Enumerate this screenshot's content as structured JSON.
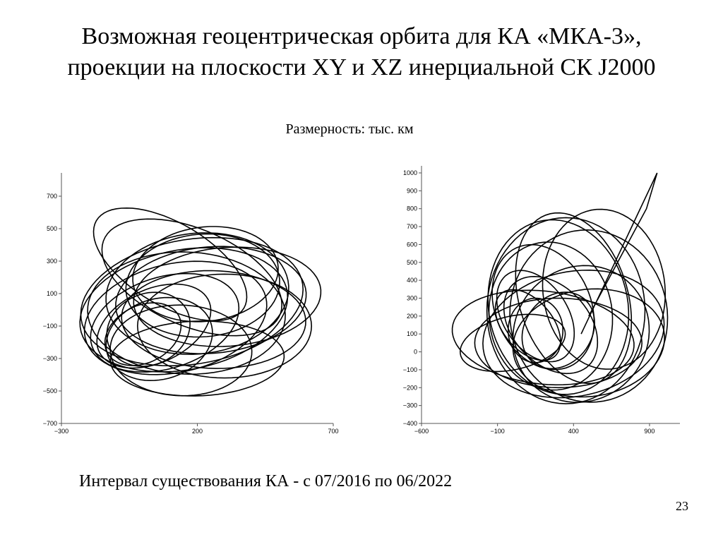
{
  "slide": {
    "title_line1": "Возможная геоцентрическая орбита для КА «МКА-3»,",
    "title_line2": "проекции на плоскости XY и XZ инерциальной СК J2000",
    "units": "Размерность: тыс. км",
    "interval": "Интервал существования КА - с 07/2016 по 06/2022",
    "page_number": "23"
  },
  "colors": {
    "line": "#000000",
    "background": "#ffffff"
  },
  "chart_data": [
    {
      "type": "line",
      "title": "",
      "xlabel": "",
      "ylabel": "",
      "xlim": [
        -300,
        700
      ],
      "ylim": [
        -700,
        800
      ],
      "x_ticks": [
        -300,
        200,
        700
      ],
      "y_ticks": [
        700,
        500,
        300,
        100,
        -100,
        -300,
        -500,
        -700
      ],
      "x_tick_labels": [
        "−300",
        "200",
        "700"
      ],
      "y_tick_labels": [
        "700",
        "500",
        "300",
        "100",
        "−100",
        "−300",
        "−500",
        "−700"
      ],
      "grid": false,
      "series": [
        {
          "orbit_loops": [
            {
              "cx": 0,
              "cy": -150,
              "rx": 130,
              "ry": 200,
              "rot": -20
            },
            {
              "cx": 20,
              "cy": -120,
              "rx": 150,
              "ry": 230,
              "rot": -10
            },
            {
              "cx": 40,
              "cy": -100,
              "rx": 180,
              "ry": 280,
              "rot": -30
            },
            {
              "cx": 80,
              "cy": -80,
              "rx": 240,
              "ry": 330,
              "rot": -35
            },
            {
              "cx": 120,
              "cy": -50,
              "rx": 300,
              "ry": 380,
              "rot": -40
            },
            {
              "cx": 150,
              "cy": 0,
              "rx": 340,
              "ry": 420,
              "rot": -45
            },
            {
              "cx": 180,
              "cy": 50,
              "rx": 360,
              "ry": 440,
              "rot": -50
            },
            {
              "cx": 200,
              "cy": 100,
              "rx": 330,
              "ry": 380,
              "rot": -20
            },
            {
              "cx": 220,
              "cy": 150,
              "rx": 280,
              "ry": 320,
              "rot": -15
            },
            {
              "cx": 250,
              "cy": 60,
              "rx": 320,
              "ry": 360,
              "rot": -60
            },
            {
              "cx": 260,
              "cy": -60,
              "rx": 340,
              "ry": 300,
              "rot": -10
            },
            {
              "cx": 300,
              "cy": -100,
              "rx": 320,
              "ry": 320,
              "rot": -5
            },
            {
              "cx": 180,
              "cy": 200,
              "rx": 250,
              "ry": 420,
              "rot": 40
            },
            {
              "cx": 140,
              "cy": -250,
              "rx": 260,
              "ry": 280,
              "rot": 10
            },
            {
              "cx": 200,
              "cy": -300,
              "rx": 320,
              "ry": 230,
              "rot": 5
            },
            {
              "cx": 100,
              "cy": 280,
              "rx": 200,
              "ry": 400,
              "rot": 35
            },
            {
              "cx": 230,
              "cy": 220,
              "rx": 260,
              "ry": 300,
              "rot": -25
            },
            {
              "cx": 160,
              "cy": -20,
              "rx": 380,
              "ry": 360,
              "rot": -65
            },
            {
              "cx": 60,
              "cy": -180,
              "rx": 190,
              "ry": 260,
              "rot": -15
            },
            {
              "cx": 310,
              "cy": 80,
              "rx": 300,
              "ry": 350,
              "rot": -70
            }
          ]
        }
      ]
    },
    {
      "type": "line",
      "title": "",
      "xlabel": "",
      "ylabel": "",
      "xlim": [
        -600,
        1100
      ],
      "ylim": [
        -400,
        1000
      ],
      "x_ticks": [
        -600,
        -100,
        400,
        900
      ],
      "y_ticks": [
        1000,
        900,
        800,
        700,
        600,
        500,
        400,
        300,
        200,
        100,
        0,
        -100,
        -200,
        -300,
        -400
      ],
      "x_tick_labels": [
        "−600",
        "−100",
        "400",
        "900"
      ],
      "y_tick_labels": [
        "1000",
        "900",
        "800",
        "700",
        "600",
        "500",
        "400",
        "300",
        "200",
        "100",
        "0",
        "−100",
        "−200",
        "−300",
        "−400"
      ],
      "grid": false,
      "series": [
        {
          "orbit_loops": [
            {
              "cx": 100,
              "cy": 150,
              "rx": 150,
              "ry": 250,
              "rot": 50
            },
            {
              "cx": 150,
              "cy": 200,
              "rx": 200,
              "ry": 300,
              "rot": 45
            },
            {
              "cx": 200,
              "cy": 250,
              "rx": 300,
              "ry": 380,
              "rot": 40
            },
            {
              "cx": 250,
              "cy": 200,
              "rx": 400,
              "ry": 420,
              "rot": 35
            },
            {
              "cx": 300,
              "cy": 250,
              "rx": 450,
              "ry": 500,
              "rot": 30
            },
            {
              "cx": 350,
              "cy": 230,
              "rx": 520,
              "ry": 520,
              "rot": 20
            },
            {
              "cx": 450,
              "cy": 100,
              "rx": 450,
              "ry": 380,
              "rot": 10
            },
            {
              "cx": 500,
              "cy": 50,
              "rx": 500,
              "ry": 300,
              "rot": 5
            },
            {
              "cx": 300,
              "cy": 50,
              "rx": 550,
              "ry": 250,
              "rot": 0
            },
            {
              "cx": 200,
              "cy": 80,
              "rx": 600,
              "ry": 260,
              "rot": -5
            },
            {
              "cx": 0,
              "cy": 50,
              "rx": 350,
              "ry": 150,
              "rot": 10
            },
            {
              "cx": 400,
              "cy": 300,
              "rx": 350,
              "ry": 500,
              "rot": 25
            },
            {
              "cx": 300,
              "cy": 120,
              "rx": 250,
              "ry": 200,
              "rot": 30
            },
            {
              "cx": 600,
              "cy": 350,
              "rx": 400,
              "ry": 450,
              "rot": 15
            },
            {
              "cx": 150,
              "cy": 120,
              "rx": 180,
              "ry": 180,
              "rot": 40
            },
            {
              "cx": 250,
              "cy": 150,
              "rx": 230,
              "ry": 340,
              "rot": 55
            },
            {
              "cx": 400,
              "cy": 100,
              "rx": 600,
              "ry": 350,
              "rot": 8
            },
            {
              "cx": 500,
              "cy": 200,
              "rx": 520,
              "ry": 480,
              "rot": -10
            }
          ],
          "spike": [
            [
              450,
              100
            ],
            [
              950,
              1000
            ],
            [
              880,
              800
            ],
            [
              500,
              200
            ]
          ]
        }
      ]
    }
  ]
}
